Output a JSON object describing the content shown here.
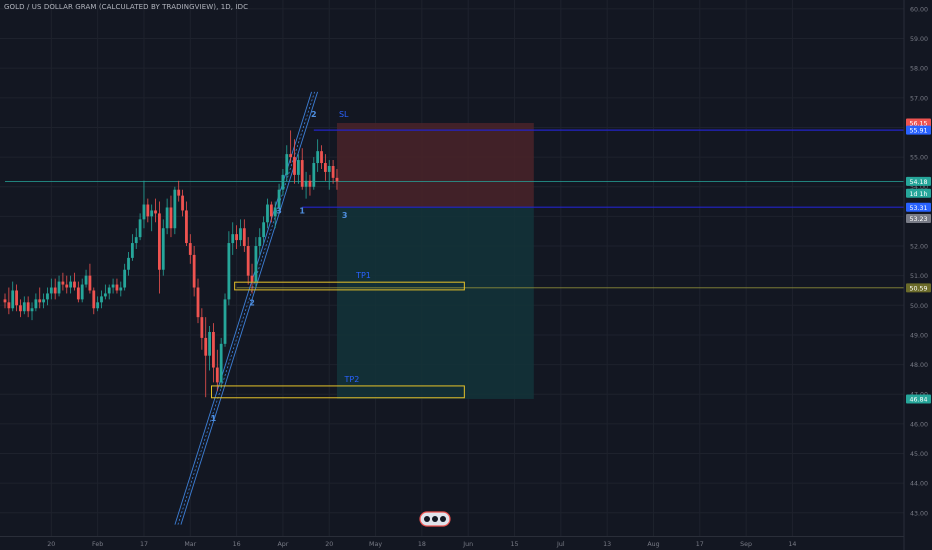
{
  "colors": {
    "background": "#131722",
    "grid": "#1e222d",
    "axis_text": "#787b86",
    "candle_up": "#26a69a",
    "candle_down": "#ef5350",
    "label_blue": "#2962ff",
    "stop_zone": "#4a2329",
    "target_zone": "#13343a"
  },
  "chart_data": {
    "type": "candlestick",
    "title": "GOLD / US DOLLAR GRAM (CALCULATED BY TRADINGVIEW), 1D, IDC",
    "price_axis": {
      "ylim": [
        42.2,
        60.3
      ],
      "ticks": [
        "43.00",
        "44.00",
        "45.00",
        "46.00",
        "47.00",
        "48.00",
        "49.00",
        "50.00",
        "51.00",
        "52.00",
        "53.00",
        "54.00",
        "55.00",
        "56.00",
        "57.00",
        "58.00",
        "59.00",
        "60.00"
      ]
    },
    "time_axis": {
      "labels": [
        "20",
        "Feb",
        "17",
        "Mar",
        "16",
        "Apr",
        "20",
        "May",
        "18",
        "Jun",
        "15",
        "Jul",
        "13",
        "Aug",
        "17",
        "Sep",
        "14"
      ],
      "label_bars": [
        12,
        24,
        36,
        48,
        60,
        72,
        84,
        96,
        108,
        120,
        132,
        144,
        156,
        168,
        180,
        192,
        204
      ]
    },
    "candles": [
      [
        50.2,
        50.4,
        49.9,
        50.1
      ],
      [
        50.1,
        50.6,
        49.7,
        49.9
      ],
      [
        49.9,
        50.8,
        49.8,
        50.5
      ],
      [
        50.5,
        50.7,
        49.8,
        50.0
      ],
      [
        50.0,
        50.2,
        49.6,
        49.8
      ],
      [
        49.8,
        50.3,
        49.7,
        50.1
      ],
      [
        50.1,
        50.3,
        49.6,
        49.8
      ],
      [
        49.8,
        50.1,
        49.5,
        49.9
      ],
      [
        49.9,
        50.4,
        49.8,
        50.2
      ],
      [
        50.2,
        50.6,
        49.9,
        50.1
      ],
      [
        50.1,
        50.4,
        49.9,
        50.2
      ],
      [
        50.2,
        50.6,
        50.0,
        50.4
      ],
      [
        50.4,
        50.9,
        50.2,
        50.6
      ],
      [
        50.6,
        50.9,
        50.2,
        50.4
      ],
      [
        50.4,
        51.0,
        50.3,
        50.8
      ],
      [
        50.8,
        51.1,
        50.5,
        50.7
      ],
      [
        50.7,
        51.0,
        50.4,
        50.6
      ],
      [
        50.6,
        51.0,
        50.4,
        50.8
      ],
      [
        50.8,
        51.1,
        50.5,
        50.6
      ],
      [
        50.6,
        50.8,
        50.1,
        50.2
      ],
      [
        50.2,
        50.9,
        50.1,
        50.7
      ],
      [
        50.7,
        51.2,
        50.6,
        51.0
      ],
      [
        51.0,
        51.4,
        50.4,
        50.5
      ],
      [
        50.5,
        50.6,
        49.7,
        49.9
      ],
      [
        49.9,
        50.3,
        49.8,
        50.1
      ],
      [
        50.1,
        50.5,
        49.9,
        50.3
      ],
      [
        50.3,
        50.7,
        50.2,
        50.4
      ],
      [
        50.4,
        50.7,
        50.2,
        50.6
      ],
      [
        50.6,
        50.9,
        50.4,
        50.7
      ],
      [
        50.7,
        50.9,
        50.4,
        50.5
      ],
      [
        50.5,
        50.8,
        50.3,
        50.6
      ],
      [
        50.6,
        51.4,
        50.5,
        51.2
      ],
      [
        51.2,
        51.8,
        51.0,
        51.6
      ],
      [
        51.6,
        52.4,
        51.5,
        52.1
      ],
      [
        52.1,
        52.6,
        51.9,
        52.3
      ],
      [
        52.3,
        53.1,
        52.2,
        52.9
      ],
      [
        52.9,
        54.2,
        52.6,
        53.4
      ],
      [
        53.4,
        53.6,
        52.8,
        53.0
      ],
      [
        53.0,
        53.4,
        52.5,
        53.2
      ],
      [
        53.2,
        53.6,
        52.8,
        53.1
      ],
      [
        53.1,
        53.5,
        50.4,
        51.2
      ],
      [
        51.2,
        52.9,
        51.0,
        52.6
      ],
      [
        52.6,
        53.6,
        52.4,
        53.3
      ],
      [
        53.3,
        53.7,
        52.3,
        52.6
      ],
      [
        52.6,
        54.0,
        52.4,
        53.9
      ],
      [
        53.9,
        54.2,
        53.5,
        53.7
      ],
      [
        53.7,
        53.9,
        53.0,
        53.2
      ],
      [
        53.2,
        53.5,
        52.0,
        52.1
      ],
      [
        52.1,
        52.4,
        51.4,
        51.7
      ],
      [
        51.7,
        52.0,
        50.3,
        50.6
      ],
      [
        50.6,
        50.9,
        49.4,
        49.6
      ],
      [
        49.6,
        49.9,
        48.5,
        48.9
      ],
      [
        48.9,
        49.6,
        46.9,
        48.3
      ],
      [
        48.3,
        49.3,
        47.8,
        49.1
      ],
      [
        49.1,
        49.4,
        47.4,
        47.9
      ],
      [
        47.9,
        48.5,
        47.1,
        47.4
      ],
      [
        47.4,
        48.9,
        47.2,
        48.7
      ],
      [
        48.7,
        50.4,
        48.6,
        50.2
      ],
      [
        50.2,
        52.5,
        50.0,
        52.1
      ],
      [
        52.1,
        52.8,
        51.7,
        52.4
      ],
      [
        52.4,
        52.7,
        51.9,
        52.2
      ],
      [
        52.2,
        52.9,
        52.0,
        52.6
      ],
      [
        52.6,
        52.9,
        51.8,
        52.0
      ],
      [
        52.0,
        52.3,
        50.7,
        51.0
      ],
      [
        51.0,
        51.4,
        50.4,
        50.8
      ],
      [
        50.8,
        52.3,
        50.6,
        52.0
      ],
      [
        52.0,
        52.6,
        51.7,
        52.3
      ],
      [
        52.3,
        53.0,
        52.1,
        52.8
      ],
      [
        52.8,
        53.6,
        52.6,
        53.4
      ],
      [
        53.4,
        53.5,
        52.8,
        53.0
      ],
      [
        53.0,
        53.5,
        52.6,
        53.3
      ],
      [
        53.3,
        54.1,
        53.1,
        53.9
      ],
      [
        53.9,
        54.6,
        53.7,
        54.4
      ],
      [
        54.4,
        55.4,
        54.2,
        55.1
      ],
      [
        55.1,
        55.9,
        54.8,
        55.0
      ],
      [
        55.0,
        55.6,
        54.1,
        54.4
      ],
      [
        54.4,
        55.1,
        54.1,
        54.9
      ],
      [
        54.9,
        55.3,
        53.9,
        54.0
      ],
      [
        54.0,
        54.5,
        53.6,
        54.2
      ],
      [
        54.2,
        54.4,
        53.7,
        54.0
      ],
      [
        54.0,
        55.0,
        53.9,
        54.8
      ],
      [
        54.8,
        55.6,
        54.5,
        55.2
      ],
      [
        55.2,
        55.4,
        54.6,
        54.8
      ],
      [
        54.8,
        55.1,
        54.2,
        54.5
      ],
      [
        54.5,
        54.9,
        53.9,
        54.7
      ],
      [
        54.7,
        54.9,
        54.1,
        54.3
      ],
      [
        54.3,
        54.6,
        53.9,
        54.18
      ]
    ],
    "annotations": [
      {
        "text": "1",
        "bar": 54,
        "price": 46.1
      },
      {
        "text": "2",
        "bar": 64,
        "price": 50.0
      },
      {
        "text": "3",
        "bar": 71,
        "price": 53.1
      },
      {
        "text": "1",
        "bar": 77,
        "price": 53.1
      },
      {
        "text": "2",
        "bar": 80,
        "price": 56.35
      },
      {
        "text": "3",
        "bar": 88,
        "price": 52.95
      }
    ],
    "channel_start": {
      "bar": 44.8,
      "price": 42.6
    },
    "channel_end": {
      "bar": 80.2,
      "price": 57.2
    },
    "position": {
      "stop_label": "SL",
      "stop_price": 56.15,
      "entry_price": 53.31,
      "bar_from": 86,
      "bar_to": 137,
      "target_price": 46.84
    },
    "horizontal_lines": [
      {
        "price": 55.91,
        "style": "blue",
        "bar_from": 80
      },
      {
        "price": 53.31,
        "style": "blue",
        "bar_from": 77
      },
      {
        "price": 54.18,
        "style": "teal",
        "bar_from": 0
      },
      {
        "price": 50.59,
        "style": "olive",
        "bar_from": 60
      }
    ],
    "target_boxes": [
      {
        "label": "TP1",
        "price_top": 50.78,
        "price_bottom": 50.52,
        "bar_from": 59.5,
        "bar_to": 119
      },
      {
        "label": "TP2",
        "price_top": 47.28,
        "price_bottom": 46.88,
        "bar_from": 53.5,
        "bar_to": 119
      }
    ],
    "price_labels": [
      {
        "text": "56.15",
        "price": 56.15,
        "color": "#ef5350"
      },
      {
        "text": "55.91",
        "price": 55.91,
        "color": "#2962ff"
      },
      {
        "text": "54.18",
        "price": 54.18,
        "color": "#26a69a"
      },
      {
        "text": "1d 1h",
        "price": 53.78,
        "color": "#26a69a"
      },
      {
        "text": "53.31",
        "price": 53.31,
        "color": "#2962ff"
      },
      {
        "text": "53.23",
        "price": 52.93,
        "color": "#787b86"
      },
      {
        "text": "50.59",
        "price": 50.59,
        "color": "#6b6b2a"
      },
      {
        "text": "46.84",
        "price": 46.84,
        "color": "#26a69a"
      }
    ]
  }
}
